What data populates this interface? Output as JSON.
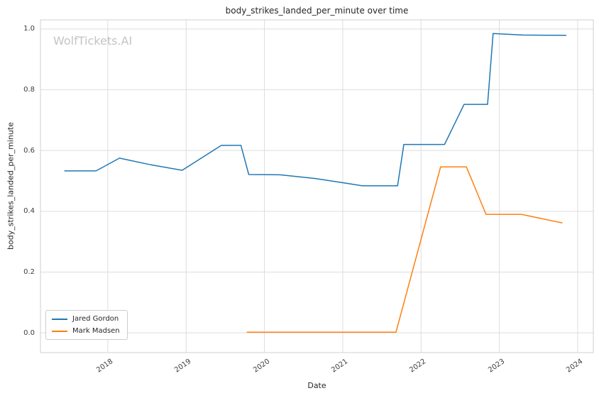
{
  "watermark": "WolfTickets.AI",
  "chart_data": {
    "type": "line",
    "title": "body_strikes_landed_per_minute over time",
    "xlabel": "Date",
    "ylabel": "body_strikes_landed_per_minute",
    "xlim": [
      2017.14,
      2024.2
    ],
    "ylim": [
      -0.065,
      1.03
    ],
    "x_ticks": [
      2018,
      2019,
      2020,
      2021,
      2022,
      2023,
      2024
    ],
    "x_tick_labels": [
      "2018",
      "2019",
      "2020",
      "2021",
      "2022",
      "2023",
      "2024"
    ],
    "y_ticks": [
      0.0,
      0.2,
      0.4,
      0.6,
      0.8,
      1.0
    ],
    "y_tick_labels": [
      "0.0",
      "0.2",
      "0.4",
      "0.6",
      "0.8",
      "1.0"
    ],
    "grid": true,
    "grid_color": "#dddddd",
    "spine_color": "#cfcfcf",
    "legend_position": "lower left",
    "series": [
      {
        "name": "Jared Gordon",
        "color": "#1f77b4",
        "points": [
          [
            2017.45,
            0.533
          ],
          [
            2017.85,
            0.533
          ],
          [
            2018.15,
            0.575
          ],
          [
            2018.55,
            0.553
          ],
          [
            2018.95,
            0.535
          ],
          [
            2019.45,
            0.617
          ],
          [
            2019.7,
            0.617
          ],
          [
            2019.8,
            0.521
          ],
          [
            2020.2,
            0.52
          ],
          [
            2020.65,
            0.508
          ],
          [
            2021.05,
            0.492
          ],
          [
            2021.25,
            0.484
          ],
          [
            2021.7,
            0.484
          ],
          [
            2021.78,
            0.62
          ],
          [
            2022.3,
            0.62
          ],
          [
            2022.55,
            0.752
          ],
          [
            2022.85,
            0.752
          ],
          [
            2022.92,
            0.985
          ],
          [
            2023.3,
            0.98
          ],
          [
            2023.85,
            0.979
          ]
        ]
      },
      {
        "name": "Mark Madsen",
        "color": "#ff7f0e",
        "points": [
          [
            2019.78,
            0.002
          ],
          [
            2020.5,
            0.002
          ],
          [
            2021.0,
            0.002
          ],
          [
            2021.68,
            0.002
          ],
          [
            2022.25,
            0.546
          ],
          [
            2022.58,
            0.546
          ],
          [
            2022.83,
            0.39
          ],
          [
            2023.28,
            0.39
          ],
          [
            2023.8,
            0.362
          ]
        ]
      }
    ]
  }
}
